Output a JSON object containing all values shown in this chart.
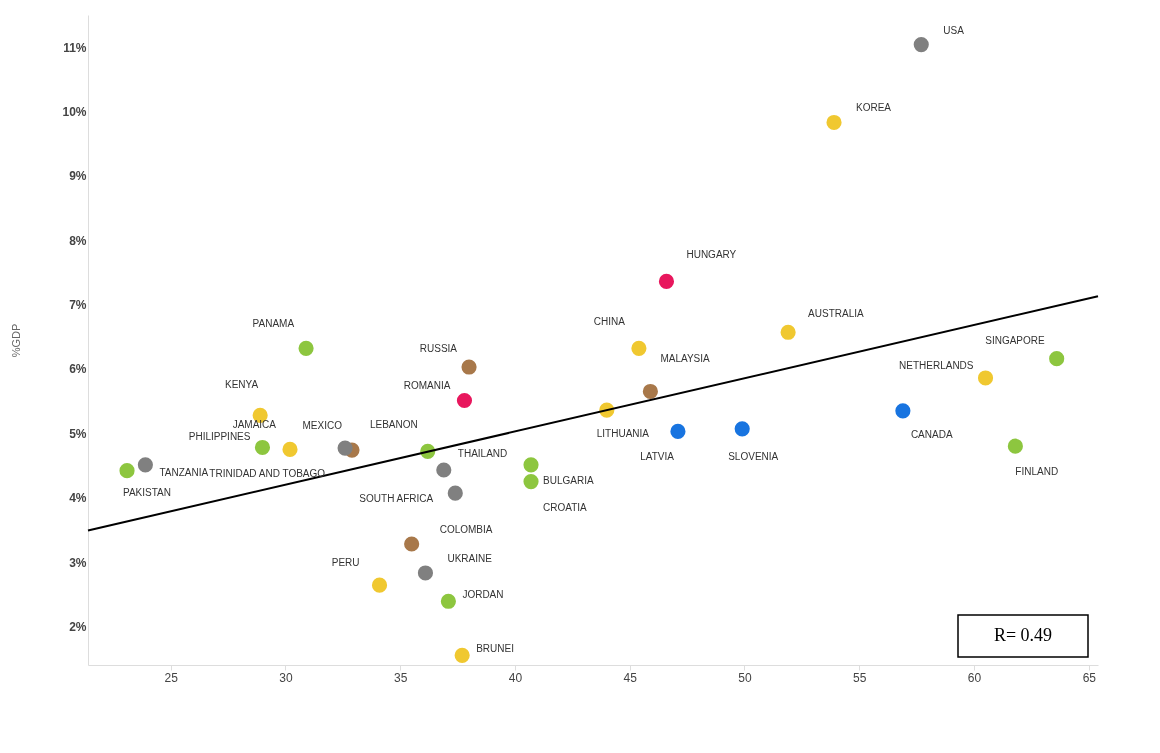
{
  "chart_data": {
    "type": "scatter",
    "ylabel": "%GDP",
    "x": [
      57.7,
      53.9,
      46.6,
      51.9,
      45.4,
      45.9,
      44.0,
      47.1,
      49.9,
      56.9,
      60.5,
      63.6,
      61.8,
      30.9,
      38.0,
      37.8,
      28.9,
      30.2,
      29.0,
      32.9,
      32.6,
      36.2,
      36.9,
      37.4,
      40.7,
      40.7,
      23.1,
      23.9,
      35.5,
      36.1,
      34.1,
      37.1,
      37.7
    ],
    "values": [
      11.04,
      9.83,
      7.36,
      6.57,
      6.32,
      5.65,
      5.36,
      5.03,
      5.07,
      5.35,
      5.86,
      6.16,
      4.8,
      6.32,
      6.03,
      5.51,
      5.28,
      4.75,
      4.78,
      4.74,
      4.77,
      4.72,
      4.43,
      4.07,
      4.51,
      4.25,
      4.42,
      4.51,
      3.28,
      2.83,
      2.64,
      2.39,
      1.55
    ],
    "colors": [
      "#808080",
      "#f0c830",
      "#e8175d",
      "#f0c830",
      "#f0c830",
      "#a8784a",
      "#f0c830",
      "#1874e0",
      "#1874e0",
      "#1874e0",
      "#f0c830",
      "#8dc63f",
      "#8dc63f",
      "#8dc63f",
      "#a8784a",
      "#e8175d",
      "#f0c830",
      "#f0c830",
      "#8dc63f",
      "#a8784a",
      "#808080",
      "#8dc63f",
      "#808080",
      "#808080",
      "#8dc63f",
      "#8dc63f",
      "#8dc63f",
      "#808080",
      "#a8784a",
      "#808080",
      "#f0c830",
      "#8dc63f",
      "#f0c830"
    ],
    "series": [
      {
        "type": "line",
        "color": "#000000",
        "marker": "none",
        "line_style": "solid",
        "x": [
          21.4,
          65.4
        ],
        "values": [
          3.49,
          7.13
        ]
      }
    ],
    "xlim": [
      21.4,
      65.4
    ],
    "xticks": [
      25,
      30,
      35,
      40,
      45,
      50,
      55,
      60,
      65
    ],
    "ylim": [
      1.4,
      11.5
    ],
    "yticks": [
      {
        "value": 2,
        "label": "2%"
      },
      {
        "value": 3,
        "label": "3%"
      },
      {
        "value": 4,
        "label": "4%"
      },
      {
        "value": 5,
        "label": "5%"
      },
      {
        "value": 6,
        "label": "6%"
      },
      {
        "value": 7,
        "label": "7%"
      },
      {
        "value": 8,
        "label": "8%"
      },
      {
        "value": 9,
        "label": "9%"
      },
      {
        "value": 10,
        "label": "10%"
      },
      {
        "value": 11,
        "label": "11%"
      }
    ],
    "marker": "circle",
    "annotations": [
      {
        "text": "USA",
        "x": 57.7,
        "y": 11.04
      },
      {
        "text": "KOREA",
        "x": 53.9,
        "y": 9.83
      },
      {
        "text": "HUNGARY",
        "x": 46.6,
        "y": 7.36
      },
      {
        "text": "AUSTRALIA",
        "x": 51.9,
        "y": 6.57
      },
      {
        "text": "CHINA",
        "x": 45.4,
        "y": 6.32
      },
      {
        "text": "MALAYSIA",
        "x": 45.9,
        "y": 5.65
      },
      {
        "text": "LITHUANIA",
        "x": 44.0,
        "y": 5.36
      },
      {
        "text": "LATVIA",
        "x": 47.1,
        "y": 5.03
      },
      {
        "text": "SLOVENIA",
        "x": 49.9,
        "y": 5.07
      },
      {
        "text": "CANADA",
        "x": 56.9,
        "y": 5.35
      },
      {
        "text": "NETHERLANDS",
        "x": 60.5,
        "y": 5.86
      },
      {
        "text": "SINGAPORE",
        "x": 63.6,
        "y": 6.16
      },
      {
        "text": "FINLAND",
        "x": 61.8,
        "y": 4.8
      },
      {
        "text": "PANAMA",
        "x": 30.9,
        "y": 6.32
      },
      {
        "text": "RUSSIA",
        "x": 38.0,
        "y": 6.03
      },
      {
        "text": "ROMANIA",
        "x": 37.8,
        "y": 5.51
      },
      {
        "text": "KENYA",
        "x": 28.9,
        "y": 5.28
      },
      {
        "text": "JAMAICA",
        "x": 30.2,
        "y": 4.75
      },
      {
        "text": "PHILIPPINES",
        "x": 29.0,
        "y": 4.78
      },
      {
        "text": "MEXICO",
        "x": 32.9,
        "y": 4.74
      },
      {
        "text": "TRINIDAD AND TOBAGO",
        "x": 32.6,
        "y": 4.77
      },
      {
        "text": "LEBANON",
        "x": 36.2,
        "y": 4.72
      },
      {
        "text": "THAILAND",
        "x": 36.9,
        "y": 4.43
      },
      {
        "text": "SOUTH AFRICA",
        "x": 37.4,
        "y": 4.07
      },
      {
        "text": "BULGARIA",
        "x": 40.7,
        "y": 4.51
      },
      {
        "text": "CROATIA",
        "x": 40.7,
        "y": 4.25
      },
      {
        "text": "PAKISTAN",
        "x": 23.1,
        "y": 4.42
      },
      {
        "text": "TANZANIA",
        "x": 23.9,
        "y": 4.51
      },
      {
        "text": "COLOMBIA",
        "x": 35.5,
        "y": 3.28
      },
      {
        "text": "UKRAINE",
        "x": 36.1,
        "y": 2.83
      },
      {
        "text": "PERU",
        "x": 34.1,
        "y": 2.64
      },
      {
        "text": "JORDAN",
        "x": 37.1,
        "y": 2.39
      },
      {
        "text": "BRUNEI",
        "x": 37.7,
        "y": 1.55
      },
      "R= 0.49"
    ]
  }
}
